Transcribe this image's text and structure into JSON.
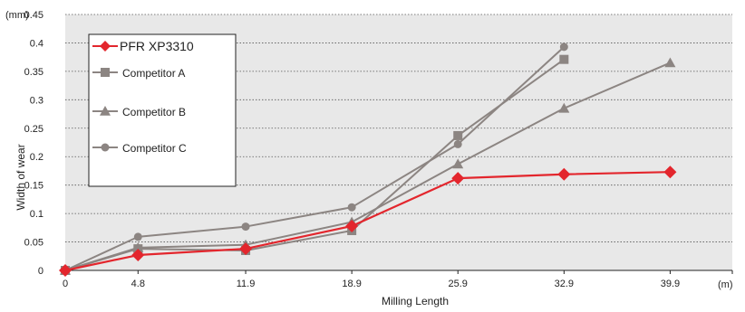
{
  "chart_data": {
    "type": "line",
    "xlabel": "Milling Length",
    "ylabel": "Width of wear",
    "x_unit": "(m)",
    "y_unit": "(mm)",
    "x_ticks": [
      "0",
      "4.8",
      "11.9",
      "18.9",
      "25.9",
      "32.9",
      "39.9"
    ],
    "y_ticks": [
      "0",
      "0.05",
      "0.1",
      "0.15",
      "0.2",
      "0.25",
      "0.3",
      "0.35",
      "0.4",
      "0.45"
    ],
    "xlim": [
      0,
      44
    ],
    "ylim": [
      0,
      0.45
    ],
    "grid": "horizontal-dotted",
    "legend_position": "top-left",
    "series": [
      {
        "name": "PFR XP3310",
        "color": "#e3262d",
        "marker": "diamond",
        "x": [
          0,
          4.8,
          11.9,
          18.9,
          25.9,
          32.9,
          39.9
        ],
        "values": [
          0,
          0.027,
          0.038,
          0.078,
          0.162,
          0.169,
          0.173
        ]
      },
      {
        "name": "Competitor A",
        "color": "#8c8582",
        "marker": "square",
        "x": [
          0,
          4.8,
          11.9,
          18.9,
          25.9,
          32.9
        ],
        "values": [
          0,
          0.038,
          0.035,
          0.07,
          0.237,
          0.371
        ]
      },
      {
        "name": "Competitor B",
        "color": "#8c8582",
        "marker": "triangle",
        "x": [
          0,
          4.8,
          11.9,
          18.9,
          25.9,
          32.9,
          39.9
        ],
        "values": [
          0,
          0.04,
          0.045,
          0.085,
          0.187,
          0.285,
          0.365
        ]
      },
      {
        "name": "Competitor C",
        "color": "#8c8582",
        "marker": "circle",
        "x": [
          0,
          4.8,
          11.9,
          18.9,
          25.9,
          32.9
        ],
        "values": [
          0,
          0.059,
          0.077,
          0.111,
          0.222,
          0.393
        ]
      }
    ]
  }
}
